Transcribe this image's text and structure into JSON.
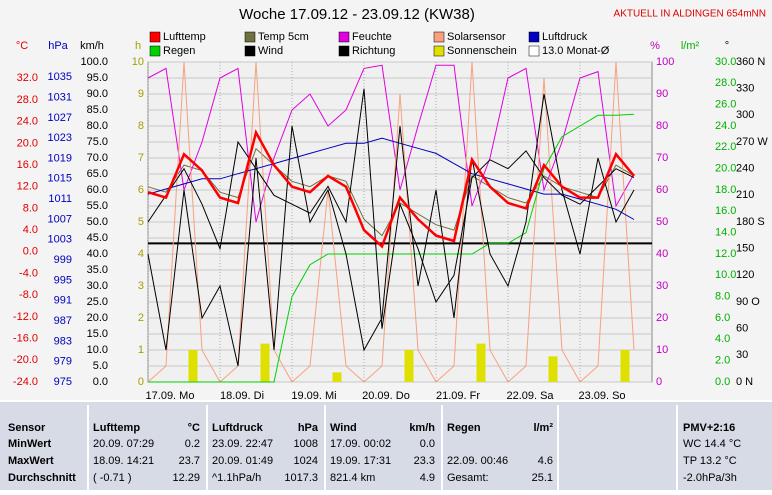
{
  "chart_data": {
    "type": "line",
    "title": "Woche 17.09.12 - 23.09.12 (KW38)",
    "note": "AKTUELL IN ALDINGEN 654mNN",
    "x": [
      0,
      6,
      12,
      18,
      24,
      30,
      36,
      42,
      48,
      54,
      60,
      66,
      72,
      78,
      84,
      90,
      96,
      102,
      108,
      114,
      120,
      126,
      132,
      138,
      144,
      150,
      156,
      162
    ],
    "xlim": [
      0,
      168
    ],
    "xticks": [
      {
        "value": 0,
        "label": "17.09. Mo"
      },
      {
        "value": 24,
        "label": "18.09. Di"
      },
      {
        "value": 48,
        "label": "19.09. Mi"
      },
      {
        "value": 72,
        "label": "20.09. Do"
      },
      {
        "value": 96,
        "label": "21.09. Fr"
      },
      {
        "value": 120,
        "label": "22.09. Sa"
      },
      {
        "value": 144,
        "label": "23.09. So"
      }
    ],
    "grid": true,
    "axes": [
      {
        "label": "°C",
        "color": "#e00000",
        "side": "left",
        "lim": [
          -24,
          35
        ],
        "ticks": [
          {
            "value": 32,
            "label": "32.0"
          },
          {
            "value": 28,
            "label": "28.0"
          },
          {
            "value": 24,
            "label": "24.0"
          },
          {
            "value": 20,
            "label": "20.0"
          },
          {
            "value": 16,
            "label": "16.0"
          },
          {
            "value": 12,
            "label": "12.0"
          },
          {
            "value": 8,
            "label": "8.0"
          },
          {
            "value": 4,
            "label": "4.0"
          },
          {
            "value": 0,
            "label": "0.0"
          },
          {
            "value": -4,
            "label": "-4.0"
          },
          {
            "value": -8,
            "label": "-8.0"
          },
          {
            "value": -12,
            "label": "-12.0"
          },
          {
            "value": -16,
            "label": "-16.0"
          },
          {
            "value": -20,
            "label": "-20.0"
          },
          {
            "value": -24,
            "label": "-24.0"
          }
        ]
      },
      {
        "label": "hPa",
        "color": "#0000c0",
        "side": "left",
        "lim": [
          975,
          1038
        ],
        "ticks": [
          1035,
          1031,
          1027,
          1023,
          1019,
          1015,
          1011,
          1007,
          1003,
          999,
          995,
          991,
          987,
          983,
          979,
          975
        ]
      },
      {
        "label": "km/h",
        "color": "#000000",
        "side": "left",
        "lim": [
          0,
          100
        ],
        "ticks": [
          {
            "value": 100,
            "label": "100.0"
          },
          {
            "value": 95,
            "label": "95.0"
          },
          {
            "value": 90,
            "label": "90.0"
          },
          {
            "value": 85,
            "label": "85.0"
          },
          {
            "value": 80,
            "label": "80.0"
          },
          {
            "value": 75,
            "label": "75.0"
          },
          {
            "value": 70,
            "label": "70.0"
          },
          {
            "value": 65,
            "label": "65.0"
          },
          {
            "value": 60,
            "label": "60.0"
          },
          {
            "value": 55,
            "label": "55.0"
          },
          {
            "value": 50,
            "label": "50.0"
          },
          {
            "value": 45,
            "label": "45.0"
          },
          {
            "value": 40,
            "label": "40.0"
          },
          {
            "value": 35,
            "label": "35.0"
          },
          {
            "value": 30,
            "label": "30.0"
          },
          {
            "value": 25,
            "label": "25.0"
          },
          {
            "value": 20,
            "label": "20.0"
          },
          {
            "value": 15,
            "label": "15.0"
          },
          {
            "value": 10,
            "label": "10.0"
          },
          {
            "value": 5,
            "label": "5.0"
          },
          {
            "value": 0,
            "label": "0.0"
          }
        ]
      },
      {
        "label": "h",
        "color": "#a0a000",
        "side": "left",
        "lim": [
          0,
          10
        ],
        "ticks": [
          10,
          9,
          8,
          7,
          6,
          5,
          4,
          3,
          2,
          1,
          0
        ]
      },
      {
        "label": "%",
        "color": "#c000c0",
        "side": "right",
        "lim": [
          0,
          100
        ],
        "ticks": [
          100,
          90,
          80,
          70,
          60,
          50,
          40,
          30,
          20,
          10,
          0
        ]
      },
      {
        "label": "l/m²",
        "color": "#00b000",
        "side": "right",
        "lim": [
          0,
          30
        ],
        "ticks": [
          {
            "value": 30,
            "label": "30.0"
          },
          {
            "value": 28,
            "label": "28.0"
          },
          {
            "value": 26,
            "label": "26.0"
          },
          {
            "value": 24,
            "label": "24.0"
          },
          {
            "value": 22,
            "label": "22.0"
          },
          {
            "value": 20,
            "label": "20.0"
          },
          {
            "value": 18,
            "label": "18.0"
          },
          {
            "value": 16,
            "label": "16.0"
          },
          {
            "value": 14,
            "label": "14.0"
          },
          {
            "value": 12,
            "label": "12.0"
          },
          {
            "value": 10,
            "label": "10.0"
          },
          {
            "value": 8,
            "label": "8.0"
          },
          {
            "value": 6,
            "label": "6.0"
          },
          {
            "value": 4,
            "label": "4.0"
          },
          {
            "value": 2,
            "label": "2.0"
          },
          {
            "value": 0,
            "label": "0.0"
          }
        ]
      },
      {
        "label": "°",
        "color": "#000000",
        "side": "right",
        "lim": [
          0,
          360
        ],
        "ticks": [
          {
            "value": 360,
            "label": "360 N"
          },
          330,
          300,
          {
            "value": 270,
            "label": "270 W"
          },
          240,
          210,
          {
            "value": 180,
            "label": "180 S"
          },
          150,
          120,
          {
            "value": 90,
            "label": "90 O"
          },
          60,
          30,
          {
            "value": 0,
            "label": "0 N"
          }
        ]
      }
    ],
    "series": [
      {
        "name": "Lufttemp",
        "color": "#ff0000",
        "axis": 0,
        "kind": "line",
        "width": 2.5,
        "values": [
          11,
          10,
          18,
          15,
          10,
          9,
          22,
          16,
          12,
          11,
          14,
          12,
          4,
          1,
          10,
          6,
          3,
          2,
          17,
          12,
          9,
          8,
          16,
          12,
          10,
          10,
          18,
          14
        ]
      },
      {
        "name": "Temp 5cm",
        "color": "#707040",
        "axis": 0,
        "kind": "line",
        "width": 1,
        "values": [
          12,
          11,
          16,
          15,
          11,
          10,
          19,
          16,
          13,
          12,
          14,
          13,
          6,
          3,
          9,
          7,
          5,
          4,
          14,
          12,
          10,
          9,
          14,
          12,
          11,
          10,
          16,
          14
        ]
      },
      {
        "name": "Feuchte",
        "color": "#e000e0",
        "axis": 4,
        "kind": "line",
        "width": 1,
        "values": [
          95,
          98,
          60,
          75,
          95,
          98,
          50,
          70,
          85,
          90,
          80,
          85,
          98,
          99,
          60,
          80,
          99,
          99,
          55,
          70,
          95,
          98,
          60,
          75,
          95,
          97,
          55,
          65
        ]
      },
      {
        "name": "Solarsensor",
        "color": "#f8a080",
        "axis": 4,
        "kind": "line",
        "width": 1,
        "values": [
          0,
          5,
          100,
          10,
          0,
          5,
          100,
          10,
          0,
          5,
          60,
          5,
          0,
          5,
          90,
          10,
          0,
          5,
          100,
          10,
          0,
          5,
          95,
          10,
          0,
          5,
          100,
          10
        ]
      },
      {
        "name": "Luftdruck",
        "color": "#0000c0",
        "axis": 1,
        "kind": "line",
        "width": 1,
        "values": [
          1012,
          1013,
          1014,
          1015,
          1015,
          1016,
          1017,
          1018,
          1019,
          1020,
          1021,
          1022,
          1022,
          1023,
          1022,
          1021,
          1020,
          1018,
          1016,
          1015,
          1014,
          1013,
          1012,
          1012,
          1011,
          1010,
          1009,
          1007
        ]
      },
      {
        "name": "Regen",
        "color": "#00d000",
        "axis": 5,
        "kind": "line",
        "width": 1,
        "values": [
          0,
          0,
          0,
          0,
          0,
          0,
          0,
          0,
          8,
          11,
          12,
          12,
          12,
          12,
          12,
          12,
          12,
          12,
          12,
          13,
          13,
          14,
          20,
          23,
          24,
          25,
          25,
          25.1
        ]
      },
      {
        "name": "Wind",
        "color": "#000000",
        "axis": 2,
        "kind": "line",
        "width": 1,
        "values": [
          40,
          10,
          60,
          20,
          30,
          5,
          70,
          10,
          80,
          50,
          60,
          40,
          10,
          20,
          80,
          30,
          60,
          20,
          70,
          40,
          30,
          50,
          90,
          60,
          40,
          70,
          50,
          60
        ]
      },
      {
        "name": "Richtung",
        "color": "#000000",
        "axis": 6,
        "kind": "line",
        "width": 1,
        "values": [
          180,
          210,
          240,
          200,
          150,
          270,
          240,
          210,
          200,
          190,
          220,
          180,
          330,
          60,
          200,
          150,
          90,
          120,
          230,
          250,
          240,
          260,
          230,
          210,
          200,
          220,
          240,
          230
        ]
      },
      {
        "name": "Sonnenschein",
        "color": "#e0e000",
        "axis": 3,
        "kind": "bar",
        "values": [
          0,
          0,
          1,
          0,
          0,
          0,
          1.2,
          0,
          0,
          0,
          0.3,
          0,
          0,
          0,
          1,
          0,
          0,
          0,
          1.2,
          0,
          0,
          0,
          0.8,
          0,
          0,
          0,
          1,
          0
        ]
      }
    ],
    "monthly_avg": {
      "name": "13.0 Monat-Ø",
      "value": 13.0,
      "axis": 5,
      "color": "#000000"
    }
  },
  "stats_table": {
    "columns": [
      {
        "name": "Sensor",
        "unit": ""
      },
      {
        "name": "Lufttemp",
        "unit": "°C"
      },
      {
        "name": "Luftdruck",
        "unit": "hPa"
      },
      {
        "name": "Wind",
        "unit": "km/h"
      },
      {
        "name": "Regen",
        "unit": "l/m²"
      },
      {
        "name": "",
        "unit": ""
      },
      {
        "name": "PMV+2:16",
        "unit": ""
      }
    ],
    "rows": [
      {
        "label": "MinWert",
        "cells": [
          [
            "20.09.  07:29",
            "0.2"
          ],
          [
            "23.09.  22:47",
            "1008"
          ],
          [
            "17.09.  00:02",
            "0.0"
          ],
          [
            "",
            ""
          ],
          [
            "",
            ""
          ],
          [
            "WC 14.4 °C",
            ""
          ]
        ]
      },
      {
        "label": "MaxWert",
        "cells": [
          [
            "18.09.  14:21",
            "23.7"
          ],
          [
            "20.09.  01:49",
            "1024"
          ],
          [
            "19.09.  17:31",
            "23.3"
          ],
          [
            "22.09.  00:46",
            "4.6"
          ],
          [
            "",
            ""
          ],
          [
            "TP 13.2 °C",
            ""
          ]
        ]
      },
      {
        "label": "Durchschnitt",
        "cells": [
          [
            "( -0.71 )",
            "12.29"
          ],
          [
            "^1.1hPa/h",
            "1017.3"
          ],
          [
            "821.4 km",
            "4.9"
          ],
          [
            "Gesamt:",
            "25.1"
          ],
          [
            "",
            ""
          ],
          [
            "-2.0hPa/3h",
            ""
          ]
        ]
      }
    ]
  }
}
